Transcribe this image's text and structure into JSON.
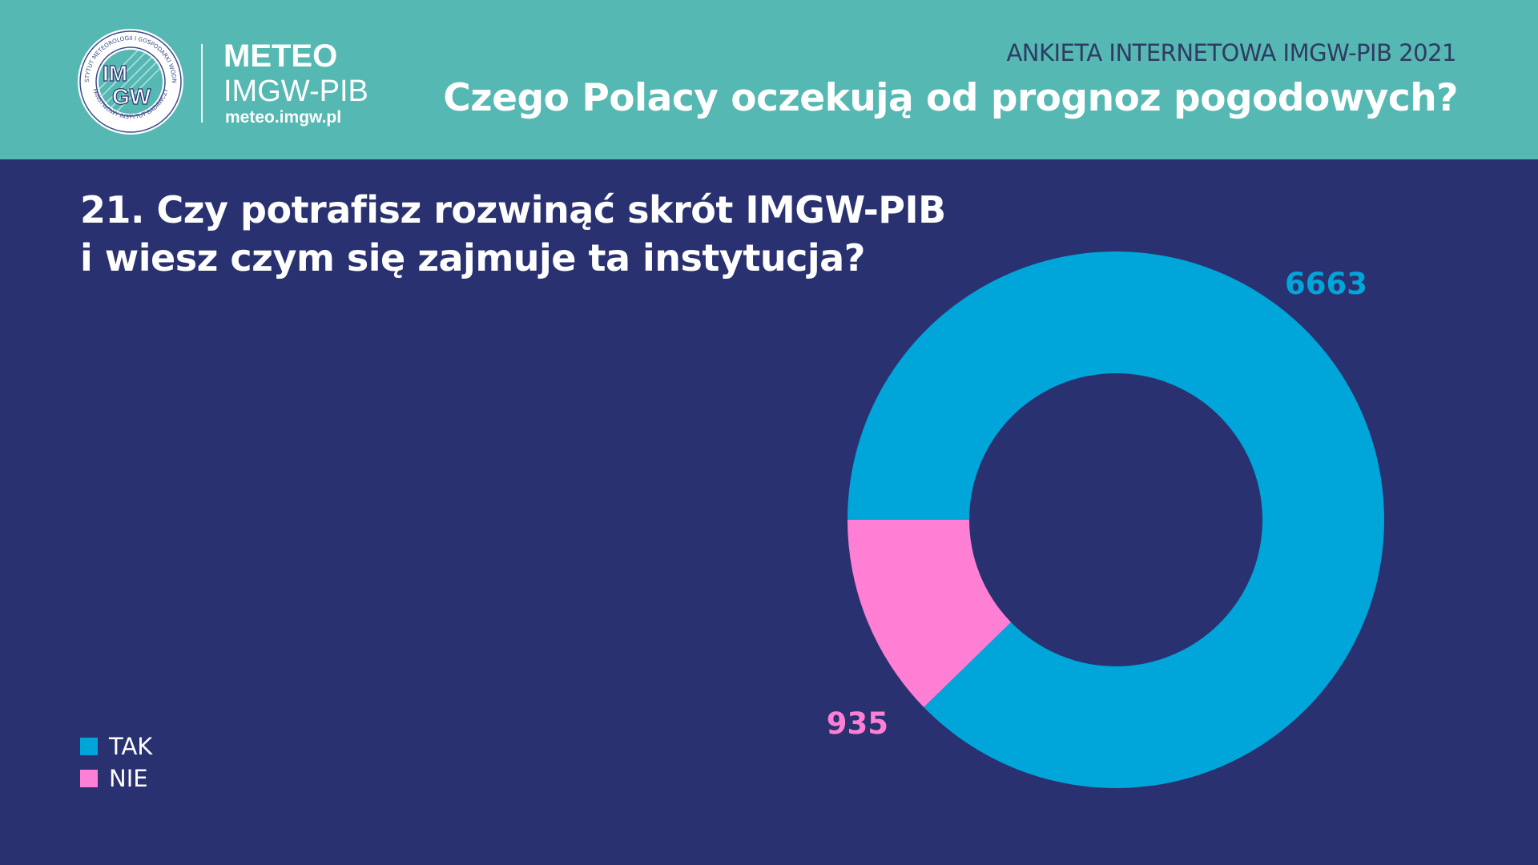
{
  "header": {
    "seal_text_top": "INSTYTUT METEOROLOGII I GOSPODARKI WODNEJ",
    "seal_text_bottom": "PAŃSTWOWY INSTYTUT BADAWCZY",
    "seal_mark_line1": "IM",
    "seal_mark_line2": "GW",
    "brand_line1": "METEO",
    "brand_line2": "IMGW-PIB",
    "brand_url": "meteo.imgw.pl",
    "survey_label": "ANKIETA INTERNETOWA IMGW-PIB 2021",
    "headline": "Czego Polacy oczekują od prognoz pogodowych?"
  },
  "question": {
    "line1": "21. Czy potrafisz rozwinąć skrót IMGW-PIB",
    "line2": "i wiesz czym się zajmuje ta instytucja?"
  },
  "colors": {
    "header_bg": "#56b8b3",
    "page_bg": "#2a3171",
    "tak": "#00a5d9",
    "nie": "#ff7fd4"
  },
  "chart_data": {
    "type": "pie",
    "donut": true,
    "categories": [
      "TAK",
      "NIE"
    ],
    "values": [
      6663,
      935
    ],
    "value_labels": [
      "6663",
      "935"
    ],
    "colors": [
      "#00a5d9",
      "#ff7fd4"
    ],
    "legend_position": "bottom-left",
    "start_angle_deg": 180,
    "direction": "clockwise"
  },
  "legend": {
    "items": [
      {
        "label": "TAK",
        "color": "#00a5d9"
      },
      {
        "label": "NIE",
        "color": "#ff7fd4"
      }
    ]
  }
}
